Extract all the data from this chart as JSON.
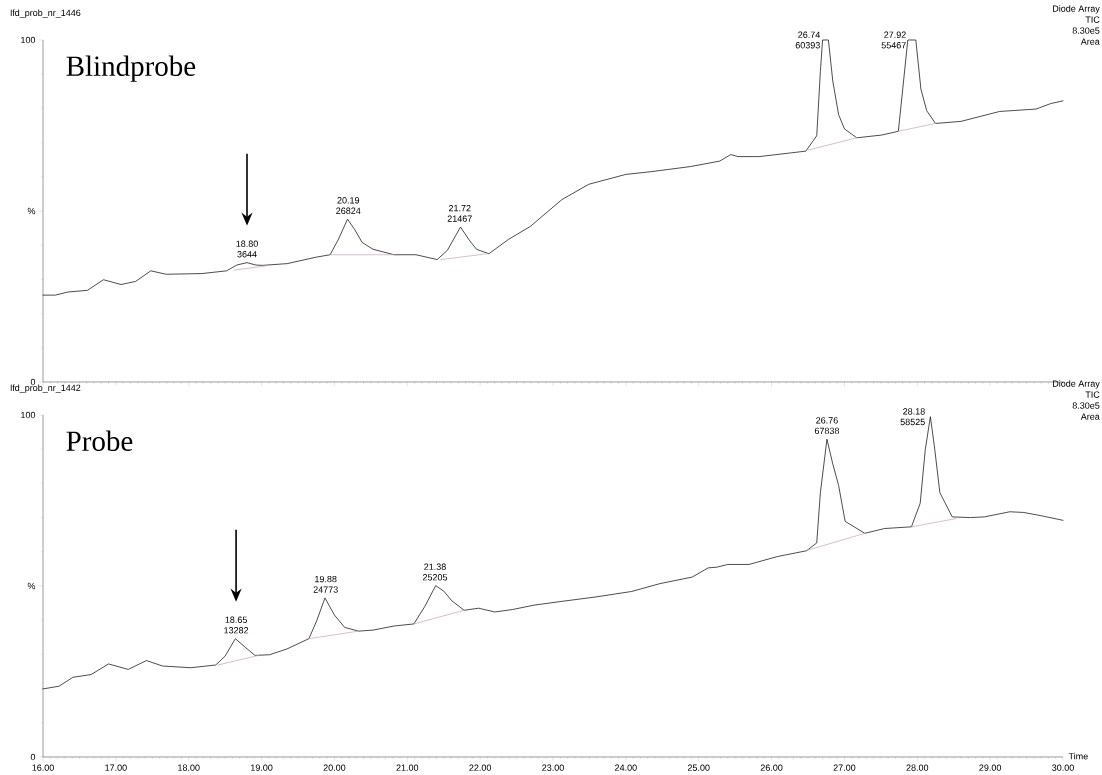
{
  "chart_data": [
    {
      "type": "line",
      "title": "lfd_prob_nr_1446",
      "subtitle": "Blindprobe",
      "annotations": [
        {
          "text": "18.80",
          "x": 18.8,
          "y": 34.9
        },
        {
          "text": "3644",
          "x": 18.8,
          "y": 34.9
        },
        {
          "text": "20.19",
          "x": 20.19,
          "y": 47.6
        },
        {
          "text": "26824",
          "x": 20.19,
          "y": 47.6
        },
        {
          "text": "21.72",
          "x": 21.72,
          "y": 45.3
        },
        {
          "text": "21467",
          "x": 21.72,
          "y": 45.3
        },
        {
          "text": "26.74",
          "x": 26.74,
          "y": 100
        },
        {
          "text": "60393",
          "x": 26.74,
          "y": 100
        },
        {
          "text": "27.92",
          "x": 27.92,
          "y": 100
        },
        {
          "text": "55467",
          "x": 27.92,
          "y": 100
        },
        "Diode Array",
        "TIC",
        "8.30e5",
        "Area"
      ],
      "xlim": [
        16,
        30
      ],
      "ylim": [
        0,
        100
      ],
      "xticks": [
        {
          "value": 16,
          "label": null
        },
        {
          "value": 17,
          "label": null
        },
        {
          "value": 18,
          "label": null
        },
        {
          "value": 19,
          "label": null
        },
        {
          "value": 20,
          "label": null
        },
        {
          "value": 21,
          "label": null
        },
        {
          "value": 22,
          "label": null
        },
        {
          "value": 23,
          "label": null
        },
        {
          "value": 24,
          "label": null
        },
        {
          "value": 25,
          "label": null
        },
        {
          "value": 26,
          "label": null
        },
        {
          "value": 27,
          "label": null
        },
        {
          "value": 28,
          "label": null
        },
        {
          "value": 29,
          "label": null
        },
        {
          "value": 30,
          "label": null
        }
      ],
      "yticks": [
        0,
        {
          "value": 50,
          "label": "%"
        },
        100
      ],
      "tick_labels": "y",
      "marker": "none",
      "line_style": "solid",
      "series": [
        {
          "color": "#000000",
          "x": [
            16.0,
            16.17,
            16.34,
            16.61,
            16.83,
            17.07,
            17.27,
            17.48,
            17.69,
            18.18,
            18.52,
            18.66,
            18.8,
            18.92,
            19.01,
            19.35,
            19.75,
            19.94,
            20.05,
            20.18,
            20.28,
            20.38,
            20.53,
            20.82,
            21.12,
            21.41,
            21.55,
            21.73,
            21.85,
            21.95,
            22.12,
            22.39,
            22.69,
            23.12,
            23.49,
            24.0,
            24.35,
            24.89,
            25.29,
            25.44,
            25.54,
            25.83,
            26.47,
            26.62,
            26.67,
            26.7,
            26.78,
            26.84,
            26.92,
            27.0,
            27.17,
            27.51,
            27.74,
            27.8,
            27.87,
            27.98,
            28.05,
            28.13,
            28.25,
            28.6,
            29.13,
            29.63,
            29.83,
            30.0
          ],
          "values": [
            25.4,
            25.4,
            26.3,
            26.8,
            29.9,
            28.5,
            29.4,
            32.5,
            31.5,
            31.7,
            32.5,
            34.2,
            34.9,
            34.2,
            34.1,
            34.6,
            36.5,
            37.2,
            41.5,
            47.6,
            44.5,
            40.8,
            38.8,
            37.2,
            37.2,
            35.8,
            38.5,
            45.3,
            41.5,
            38.8,
            37.5,
            41.7,
            45.5,
            53.3,
            57.8,
            60.7,
            61.5,
            63.0,
            64.6,
            66.5,
            65.9,
            65.9,
            67.5,
            72.0,
            90.8,
            100,
            100,
            88.0,
            78.2,
            74.0,
            71.4,
            72.2,
            73.3,
            85.6,
            100,
            100,
            85.6,
            79.3,
            75.6,
            76.2,
            79.1,
            79.8,
            81.4,
            82.2
          ]
        },
        {
          "color": "#c8a0c0",
          "x": [
            18.62,
            19.11,
            19.5,
            19.94,
            20.82,
            21.1,
            21.46,
            22.1,
            24.0,
            26.5,
            27.17,
            27.4,
            27.74,
            28.25
          ],
          "values": [
            32.7,
            34.1,
            null,
            37.2,
            37.2,
            null,
            35.8,
            37.5,
            null,
            67.8,
            71.4,
            null,
            73.3,
            75.6
          ]
        }
      ]
    },
    {
      "type": "line",
      "title": "lfd_prob_nr_1442",
      "subtitle": "Probe",
      "xlabel": "Time",
      "annotations": [
        {
          "text": "18.65",
          "x": 18.65,
          "y": 34.6
        },
        {
          "text": "13282",
          "x": 18.65,
          "y": 34.6
        },
        {
          "text": "19.88",
          "x": 19.88,
          "y": 46.5
        },
        {
          "text": "24773",
          "x": 19.88,
          "y": 46.5
        },
        {
          "text": "21.38",
          "x": 21.38,
          "y": 50.1
        },
        {
          "text": "25205",
          "x": 21.38,
          "y": 50.1
        },
        {
          "text": "26.76",
          "x": 26.76,
          "y": 92.9
        },
        {
          "text": "67838",
          "x": 26.76,
          "y": 92.9
        },
        {
          "text": "28.18",
          "x": 28.18,
          "y": 99.5
        },
        {
          "text": "58525",
          "x": 28.18,
          "y": 99.5
        },
        "Diode Array",
        "TIC",
        "8.30e5",
        "Area"
      ],
      "xlim": [
        16,
        30
      ],
      "ylim": [
        0,
        100
      ],
      "xticks": [
        {
          "value": 16,
          "label": "16.00"
        },
        {
          "value": 17,
          "label": "17.00"
        },
        {
          "value": 18,
          "label": "18.00"
        },
        {
          "value": 19,
          "label": "19.00"
        },
        {
          "value": 20,
          "label": "20.00"
        },
        {
          "value": 21,
          "label": "21.00"
        },
        {
          "value": 22,
          "label": "22.00"
        },
        {
          "value": 23,
          "label": "23.00"
        },
        {
          "value": 24,
          "label": "24.00"
        },
        {
          "value": 25,
          "label": "25.00"
        },
        {
          "value": 26,
          "label": "26.00"
        },
        {
          "value": 27,
          "label": "27.00"
        },
        {
          "value": 28,
          "label": "28.00"
        },
        {
          "value": 29,
          "label": "29.00"
        },
        {
          "value": 30,
          "label": "30.00"
        }
      ],
      "yticks": [
        0,
        {
          "value": 50,
          "label": "%"
        },
        100
      ],
      "marker": "none",
      "line_style": "solid",
      "series": [
        {
          "color": "#000000",
          "x": [
            16.0,
            16.22,
            16.41,
            16.66,
            16.9,
            17.17,
            17.42,
            17.64,
            18.03,
            18.37,
            18.5,
            18.64,
            18.78,
            18.91,
            19.11,
            19.35,
            19.65,
            19.76,
            19.87,
            20.0,
            20.14,
            20.33,
            20.53,
            20.82,
            21.09,
            21.24,
            21.39,
            21.5,
            21.61,
            21.78,
            21.98,
            22.2,
            22.44,
            22.74,
            23.12,
            23.59,
            24.08,
            24.47,
            24.91,
            25.13,
            25.25,
            25.4,
            25.69,
            26.08,
            26.48,
            26.62,
            26.67,
            26.76,
            26.84,
            26.92,
            27.01,
            27.28,
            27.55,
            27.92,
            28.04,
            28.11,
            28.18,
            28.24,
            28.31,
            28.48,
            28.73,
            28.92,
            29.27,
            29.46,
            29.71,
            30.0
          ],
          "values": [
            19.9,
            20.7,
            23.3,
            24.1,
            27.2,
            25.6,
            28.2,
            26.6,
            26.1,
            26.9,
            29.5,
            34.6,
            32.0,
            29.7,
            29.9,
            31.6,
            34.6,
            40.0,
            46.5,
            41.5,
            37.9,
            36.8,
            37.1,
            38.3,
            38.9,
            44.0,
            50.1,
            48.5,
            45.7,
            42.9,
            43.5,
            42.4,
            43.1,
            44.4,
            45.5,
            46.8,
            48.4,
            50.7,
            52.6,
            55.3,
            55.5,
            56.3,
            56.3,
            58.6,
            60.3,
            62.6,
            77.3,
            92.9,
            85.7,
            79.4,
            68.9,
            65.4,
            66.8,
            67.3,
            74.2,
            89.9,
            99.5,
            89.9,
            77.3,
            70.2,
            70.0,
            70.2,
            71.7,
            71.5,
            70.5,
            69.2
          ]
        },
        {
          "color": "#c8a0c0",
          "x": [
            18.4,
            18.96,
            19.3,
            19.65,
            20.33,
            20.7,
            21.09,
            21.78,
            24.0,
            26.5,
            27.28,
            27.6,
            27.92,
            28.53
          ],
          "values": [
            26.9,
            29.7,
            null,
            34.6,
            36.8,
            null,
            38.9,
            42.9,
            null,
            60.5,
            65.4,
            null,
            67.3,
            69.7
          ]
        }
      ]
    }
  ]
}
